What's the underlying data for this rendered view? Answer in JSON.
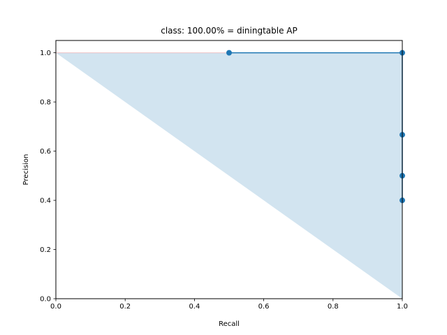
{
  "chart_data": {
    "type": "area",
    "title": "class: 100.00% = diningtable AP",
    "xlabel": "Recall",
    "ylabel": "Precision",
    "xlim": [
      0.0,
      1.0
    ],
    "ylim": [
      0.0,
      1.05
    ],
    "xticks": [
      "0.0",
      "0.2",
      "0.4",
      "0.6",
      "0.8",
      "1.0"
    ],
    "yticks": [
      "0.0",
      "0.2",
      "0.4",
      "0.6",
      "0.8",
      "1.0"
    ],
    "grid": false,
    "series": [
      {
        "style": "line-with-markers",
        "color": "#1f77b4",
        "points": [
          {
            "x": 0.5,
            "y": 1.0
          },
          {
            "x": 1.0,
            "y": 1.0
          },
          {
            "x": 1.0,
            "y": 0.6667
          },
          {
            "x": 1.0,
            "y": 0.5
          },
          {
            "x": 1.0,
            "y": 0.4
          }
        ]
      },
      {
        "style": "filled-area",
        "color": "#1f77b4",
        "opacity": 0.2,
        "edge_color": "#ff0000",
        "points": [
          {
            "x": 0.0,
            "y": 1.0
          },
          {
            "x": 1.0,
            "y": 1.0
          },
          {
            "x": 1.0,
            "y": 0.0
          }
        ]
      }
    ]
  }
}
